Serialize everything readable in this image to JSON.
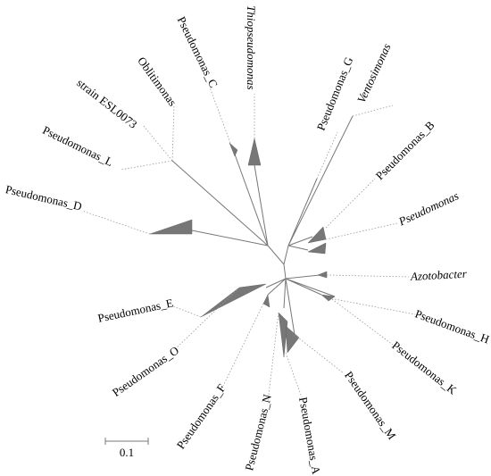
{
  "labels": [
    "Thiopseudomonas",
    "Pseudomonas_C",
    "Oblitimonas",
    "strain ESL0073",
    "Pseudomonas_L",
    "Pseudomonas_D",
    "Pseudomonas_G",
    "Ventosimonas",
    "Pseudomonas_B",
    "Pseudomonas",
    "Azotobacter",
    "Pseudomonas_H",
    "Pseudomonas_K",
    "Pseudomonas_M",
    "Pseudomonas_A",
    "Pseudomonas_N",
    "Pseudomonas_F",
    "Pseudomonas_O",
    "Pseudomonas_E"
  ],
  "scale_bar": "0.1"
}
